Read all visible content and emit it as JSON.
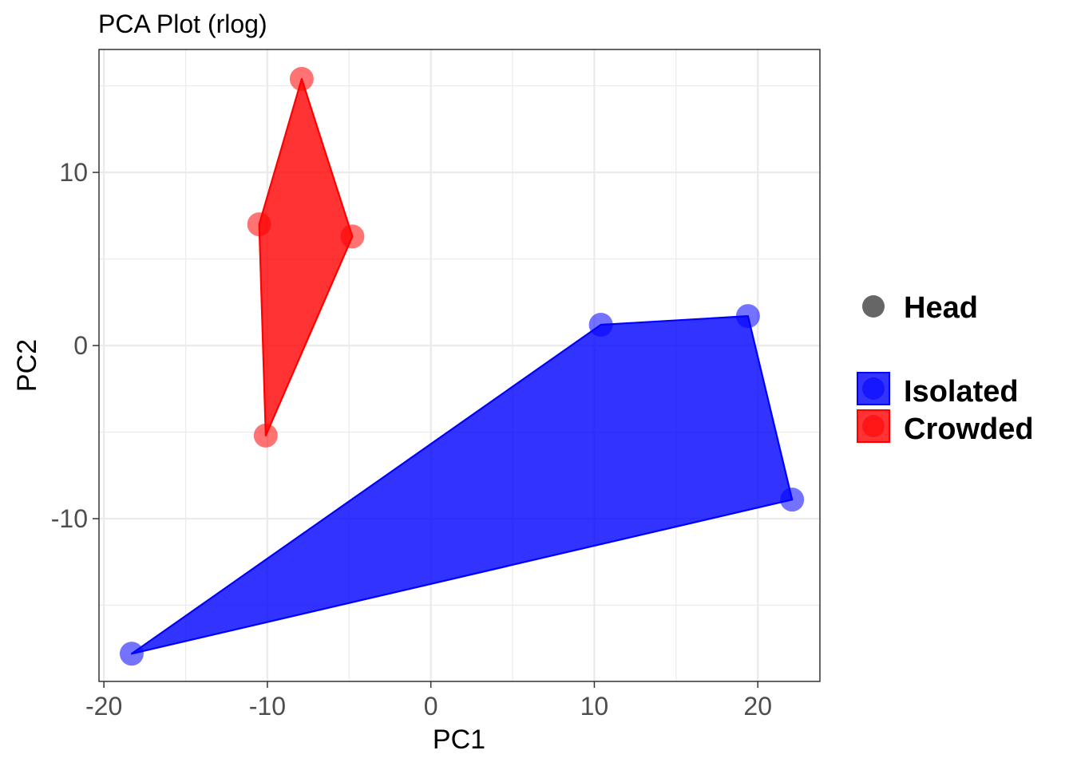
{
  "chart_data": {
    "type": "scatter",
    "title": "PCA Plot (rlog)",
    "xlabel": "PC1",
    "ylabel": "PC2",
    "xlim": [
      -20.3,
      23.8
    ],
    "ylim": [
      -19.4,
      17.1
    ],
    "x_ticks": [
      -20,
      -10,
      0,
      10,
      20
    ],
    "x_tick_labels": [
      "-20",
      "-10",
      "0",
      "10",
      "20"
    ],
    "y_ticks": [
      -10,
      0,
      10
    ],
    "y_tick_labels": [
      "-10",
      "0",
      "10"
    ],
    "grid": true,
    "legend_position": "right",
    "shape_legend": {
      "label": "Head",
      "color": "#666666"
    },
    "series": [
      {
        "name": "Isolated",
        "color": "#0000ff",
        "points": [
          {
            "x": -18.3,
            "y": -17.8
          },
          {
            "x": 10.4,
            "y": 1.2
          },
          {
            "x": 19.4,
            "y": 1.7
          },
          {
            "x": 22.1,
            "y": -8.9
          }
        ],
        "hull": [
          {
            "x": -18.3,
            "y": -17.8
          },
          {
            "x": 10.4,
            "y": 1.2
          },
          {
            "x": 19.4,
            "y": 1.7
          },
          {
            "x": 22.1,
            "y": -8.9
          }
        ]
      },
      {
        "name": "Crowded",
        "color": "#ff0000",
        "points": [
          {
            "x": -7.9,
            "y": 15.4
          },
          {
            "x": -10.5,
            "y": 7.0
          },
          {
            "x": -4.8,
            "y": 6.3
          },
          {
            "x": -10.1,
            "y": -5.2
          }
        ],
        "hull": [
          {
            "x": -7.9,
            "y": 15.4
          },
          {
            "x": -10.5,
            "y": 7.0
          },
          {
            "x": -10.1,
            "y": -5.2
          },
          {
            "x": -4.8,
            "y": 6.3
          }
        ]
      }
    ]
  }
}
